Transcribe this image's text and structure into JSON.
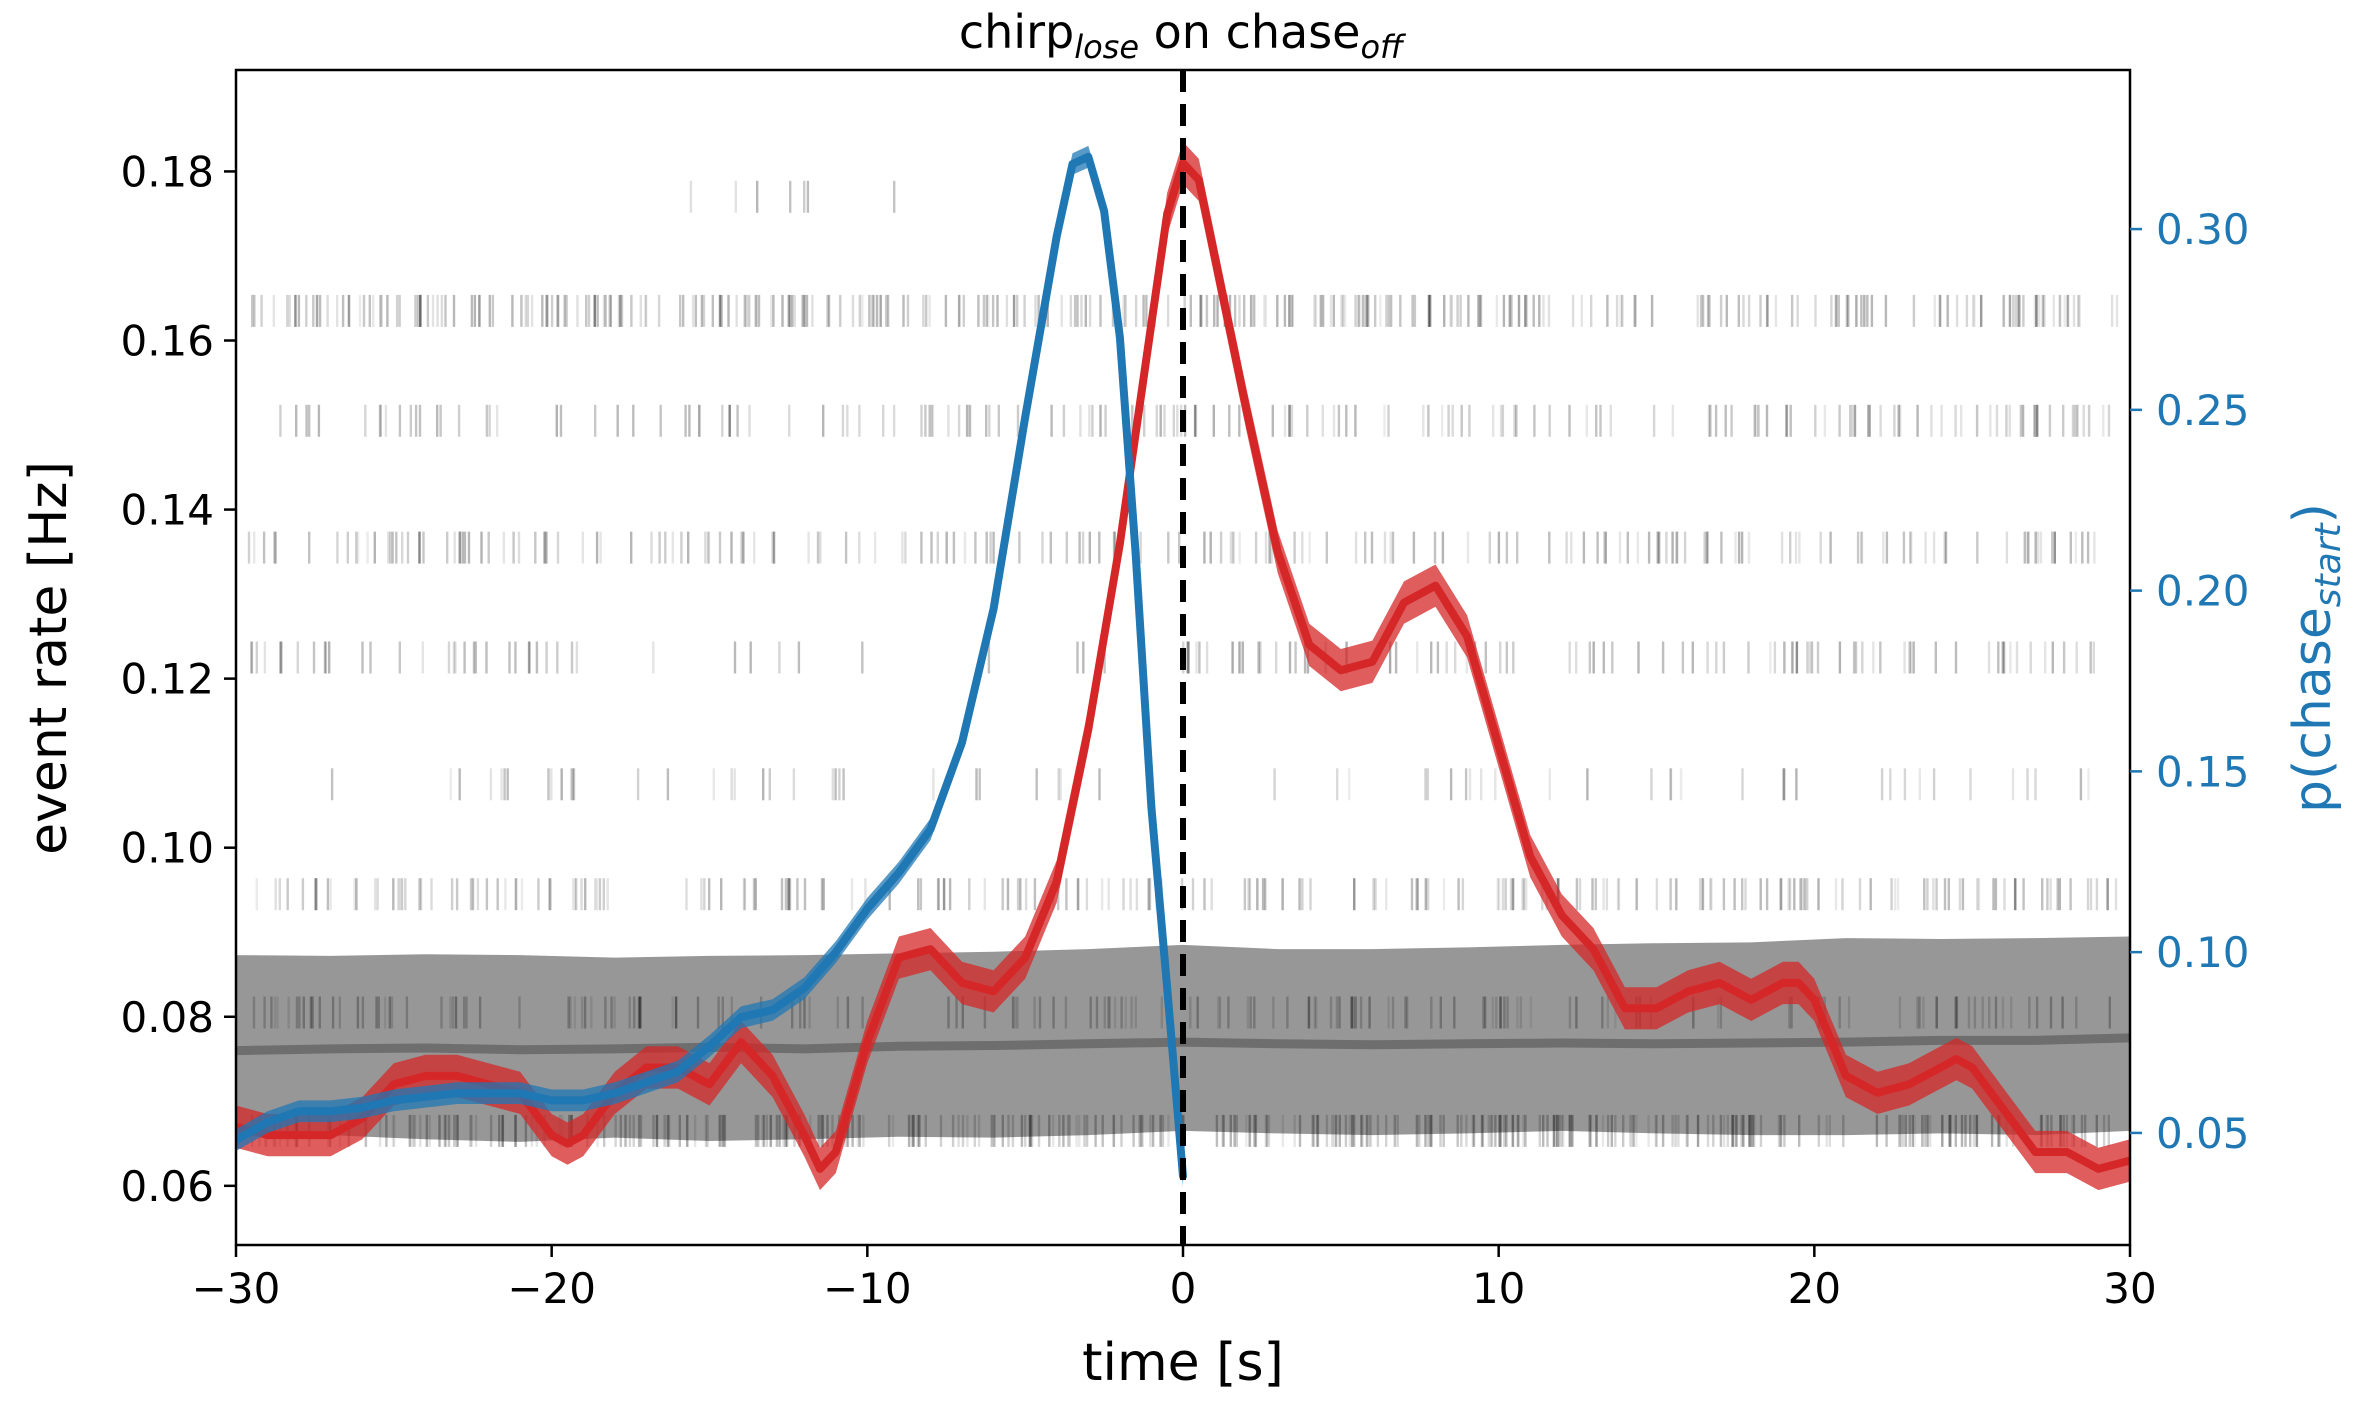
{
  "chart_data": {
    "type": "line",
    "title": {
      "main": "chirp",
      "main_sub": "lose",
      "connector": " on ",
      "ref": "chase",
      "ref_sub": "off"
    },
    "xlabel": "time [s]",
    "ylabel": "event rate [Hz]",
    "ylabel_right": {
      "main": "p(chase",
      "sub": "start",
      "close": ")"
    },
    "xlim": [
      -30,
      30
    ],
    "ylim": [
      0.053,
      0.192
    ],
    "ylim_right": [
      0.019,
      0.344
    ],
    "xticks": [
      -30,
      -20,
      -10,
      0,
      10,
      20,
      30
    ],
    "xtick_labels": [
      "−30",
      "−20",
      "−10",
      "0",
      "10",
      "20",
      "30"
    ],
    "yticks": [
      0.06,
      0.08,
      0.1,
      0.12,
      0.14,
      0.16,
      0.18
    ],
    "ytick_labels": [
      "0.06",
      "0.08",
      "0.10",
      "0.12",
      "0.14",
      "0.16",
      "0.18"
    ],
    "yticks_right": [
      0.05,
      0.1,
      0.15,
      0.2,
      0.25,
      0.3
    ],
    "ytick_labels_right": [
      "0.05",
      "0.10",
      "0.15",
      "0.20",
      "0.25",
      "0.30"
    ],
    "vline_x": 0,
    "colors": {
      "red": "#d62728",
      "blue": "#1f77b4",
      "gray": "#808080",
      "raster": "#000000",
      "right_axis": "#1f77b4"
    },
    "shuffled_band": {
      "x": [
        -30,
        -27,
        -24,
        -21,
        -18,
        -15,
        -12,
        -9,
        -6,
        -3,
        0,
        3,
        6,
        9,
        12,
        15,
        18,
        21,
        24,
        27,
        30
      ],
      "mean": [
        0.076,
        0.0762,
        0.0763,
        0.0761,
        0.0762,
        0.0764,
        0.0762,
        0.0765,
        0.0766,
        0.0768,
        0.077,
        0.0768,
        0.0767,
        0.0768,
        0.0769,
        0.0768,
        0.0769,
        0.077,
        0.0772,
        0.0772,
        0.0775
      ],
      "upper": [
        0.0873,
        0.0872,
        0.0874,
        0.0873,
        0.087,
        0.0872,
        0.0873,
        0.0875,
        0.0877,
        0.088,
        0.0885,
        0.088,
        0.088,
        0.0882,
        0.0885,
        0.0887,
        0.0888,
        0.0893,
        0.0892,
        0.0893,
        0.0895
      ],
      "lower": [
        0.0658,
        0.066,
        0.0655,
        0.0652,
        0.0657,
        0.0653,
        0.0655,
        0.0658,
        0.0657,
        0.066,
        0.0665,
        0.0662,
        0.066,
        0.0662,
        0.0665,
        0.0662,
        0.066,
        0.066,
        0.0662,
        0.066,
        0.0665
      ]
    },
    "series": [
      {
        "axis": "left",
        "color": "#d62728",
        "x": [
          -30,
          -29,
          -28,
          -27,
          -26,
          -25,
          -24,
          -23,
          -22,
          -21,
          -20,
          -19.5,
          -19,
          -18,
          -17,
          -16,
          -15,
          -14,
          -13,
          -12,
          -11.5,
          -11,
          -10,
          -9,
          -8,
          -7,
          -6,
          -5,
          -4,
          -3,
          -2,
          -1,
          -0.5,
          0,
          0.5,
          1,
          2,
          3,
          4,
          5,
          6,
          7,
          8,
          9,
          10,
          11,
          12,
          13,
          14,
          15,
          16,
          17,
          18,
          19,
          19.5,
          20,
          21,
          22,
          23,
          24,
          24.5,
          25,
          26,
          27,
          28,
          29,
          30
        ],
        "y": [
          0.067,
          0.066,
          0.066,
          0.066,
          0.068,
          0.072,
          0.073,
          0.073,
          0.072,
          0.071,
          0.066,
          0.065,
          0.066,
          0.071,
          0.074,
          0.074,
          0.072,
          0.077,
          0.073,
          0.066,
          0.062,
          0.064,
          0.077,
          0.087,
          0.088,
          0.084,
          0.083,
          0.087,
          0.096,
          0.114,
          0.136,
          0.162,
          0.175,
          0.181,
          0.179,
          0.17,
          0.152,
          0.135,
          0.124,
          0.121,
          0.122,
          0.129,
          0.131,
          0.125,
          0.112,
          0.099,
          0.092,
          0.088,
          0.081,
          0.081,
          0.083,
          0.084,
          0.082,
          0.084,
          0.084,
          0.082,
          0.073,
          0.071,
          0.072,
          0.074,
          0.075,
          0.074,
          0.069,
          0.064,
          0.064,
          0.062,
          0.063
        ],
        "band": 0.0025
      },
      {
        "axis": "right",
        "color": "#1f77b4",
        "x": [
          -30,
          -29,
          -28,
          -27,
          -26,
          -25,
          -24,
          -23,
          -22,
          -21,
          -20,
          -19,
          -18,
          -17,
          -16,
          -15,
          -14,
          -13,
          -12,
          -11,
          -10,
          -9,
          -8,
          -7,
          -6,
          -5,
          -4,
          -3.5,
          -3,
          -2.5,
          -2,
          -1.5,
          -1,
          -0.5,
          0
        ],
        "y": [
          0.048,
          0.053,
          0.056,
          0.056,
          0.057,
          0.059,
          0.06,
          0.061,
          0.061,
          0.061,
          0.059,
          0.059,
          0.061,
          0.064,
          0.067,
          0.074,
          0.082,
          0.084,
          0.09,
          0.1,
          0.112,
          0.122,
          0.134,
          0.158,
          0.195,
          0.248,
          0.298,
          0.318,
          0.32,
          0.305,
          0.27,
          0.21,
          0.14,
          0.09,
          0.038
        ],
        "band": 0.003
      }
    ],
    "raster": {
      "rows_y": [
        0.0665,
        0.0805,
        0.0945,
        0.1075,
        0.1225,
        0.1355,
        0.1505,
        0.1635,
        0.177
      ],
      "density": [
        0.95,
        0.4,
        0.55,
        0.12,
        0.45,
        0.45,
        0.4,
        0.85,
        0.02
      ]
    }
  }
}
